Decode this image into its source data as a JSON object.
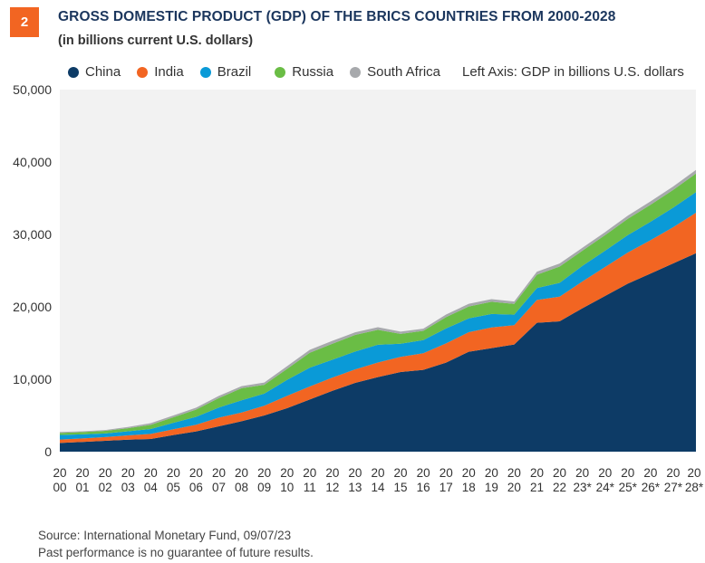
{
  "header": {
    "badge": "2",
    "title": "GROSS DOMESTIC PRODUCT (GDP) OF THE BRICS COUNTRIES FROM 2000-2028",
    "subtitle": "(in billions current U.S. dollars)"
  },
  "legend": {
    "items": [
      {
        "label": "China",
        "color": "#0d3b66"
      },
      {
        "label": "India",
        "color": "#f26522"
      },
      {
        "label": "Brazil",
        "color": "#0a9ad7"
      },
      {
        "label": "Russia",
        "color": "#6abd45"
      },
      {
        "label": "South Africa",
        "color": "#a7a9ac"
      }
    ],
    "note": "Left Axis: GDP in billions U.S. dollars"
  },
  "footer": {
    "source": "Source: International Monetary Fund,  09/07/23",
    "disclaimer": "Past performance is no guarantee of future results."
  },
  "chart_data": {
    "type": "area",
    "stacked": true,
    "plot_background": "#f2f2f2",
    "grid": false,
    "ylim": [
      0,
      50000
    ],
    "yticks": [
      "0",
      "10,000",
      "20,000",
      "30,000",
      "40,000",
      "50,000"
    ],
    "categories": [
      [
        "20",
        "00"
      ],
      [
        "20",
        "01"
      ],
      [
        "20",
        "02"
      ],
      [
        "20",
        "03"
      ],
      [
        "20",
        "04"
      ],
      [
        "20",
        "05"
      ],
      [
        "20",
        "06"
      ],
      [
        "20",
        "07"
      ],
      [
        "20",
        "08"
      ],
      [
        "20",
        "09"
      ],
      [
        "20",
        "10"
      ],
      [
        "20",
        "11"
      ],
      [
        "20",
        "12"
      ],
      [
        "20",
        "13"
      ],
      [
        "20",
        "14"
      ],
      [
        "20",
        "15"
      ],
      [
        "20",
        "16"
      ],
      [
        "20",
        "17"
      ],
      [
        "20",
        "18"
      ],
      [
        "20",
        "19"
      ],
      [
        "20",
        "20"
      ],
      [
        "20",
        "21"
      ],
      [
        "20",
        "22"
      ],
      [
        "20",
        "23*"
      ],
      [
        "20",
        "24*"
      ],
      [
        "20",
        "25*"
      ],
      [
        "20",
        "26*"
      ],
      [
        "20",
        "27*"
      ],
      [
        "20",
        "28*"
      ]
    ],
    "series": [
      {
        "name": "China",
        "color": "#0d3b66",
        "values": [
          1200,
          1350,
          1500,
          1650,
          1750,
          2300,
          2800,
          3500,
          4200,
          5000,
          6000,
          7200,
          8400,
          9500,
          10300,
          11000,
          11300,
          12300,
          13800,
          14300,
          14800,
          17800,
          18000,
          19800,
          21500,
          23200,
          24600,
          26000,
          27400
        ]
      },
      {
        "name": "India",
        "color": "#f26522",
        "values": [
          470,
          480,
          510,
          600,
          700,
          800,
          920,
          1200,
          1200,
          1350,
          1700,
          1800,
          1830,
          1860,
          2020,
          2100,
          2300,
          2650,
          2700,
          2850,
          2670,
          3150,
          3400,
          3700,
          4000,
          4300,
          4600,
          5000,
          5600
        ]
      },
      {
        "name": "Brazil",
        "color": "#0a9ad7",
        "values": [
          650,
          560,
          510,
          560,
          670,
          890,
          1100,
          1400,
          1700,
          1670,
          2200,
          2600,
          2470,
          2470,
          2450,
          1800,
          1800,
          2060,
          1900,
          1870,
          1450,
          1650,
          1920,
          2150,
          2250,
          2400,
          2550,
          2700,
          2850
        ]
      },
      {
        "name": "Russia",
        "color": "#6abd45",
        "values": [
          260,
          310,
          350,
          430,
          590,
          760,
          990,
          1300,
          1660,
          1220,
          1520,
          2050,
          2210,
          2290,
          2060,
          1360,
          1280,
          1570,
          1650,
          1690,
          1480,
          1840,
          2250,
          2100,
          2150,
          2250,
          2350,
          2450,
          2550
        ]
      },
      {
        "name": "South Africa",
        "color": "#a7a9ac",
        "values": [
          140,
          120,
          110,
          170,
          220,
          250,
          270,
          300,
          290,
          300,
          380,
          420,
          400,
          370,
          350,
          320,
          300,
          350,
          370,
          350,
          340,
          420,
          410,
          400,
          420,
          440,
          460,
          480,
          500
        ]
      }
    ]
  }
}
